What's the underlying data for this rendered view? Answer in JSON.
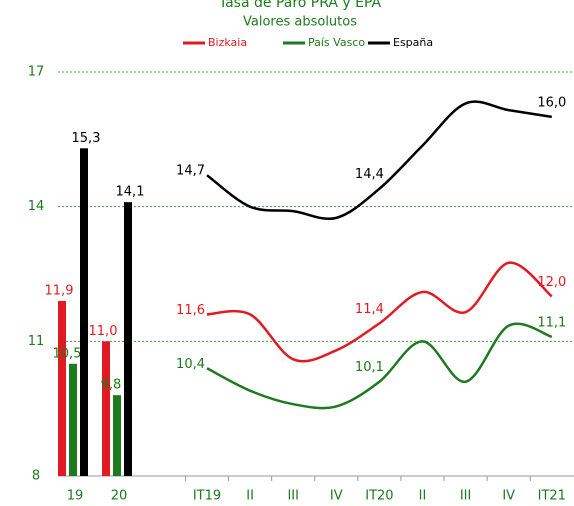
{
  "chart_data": [
    {
      "type": "bar",
      "title": "Tasa de Paro PRA y EPA",
      "subtitle": "Valores absolutos",
      "categories": [
        "19",
        "20"
      ],
      "series": [
        {
          "name": "Bizkaia",
          "color": "#e11b22",
          "values": [
            11.9,
            11.0
          ],
          "value_labels": [
            "11,9",
            "11,0"
          ]
        },
        {
          "name": "País Vasco",
          "color": "#1e7a1e",
          "values": [
            10.5,
            9.8
          ],
          "value_labels": [
            "10,5",
            "9,8"
          ]
        },
        {
          "name": "España",
          "color": "#000000",
          "values": [
            15.3,
            14.1
          ],
          "value_labels": [
            "15,3",
            "14,1"
          ]
        }
      ],
      "ylim": [
        8,
        17
      ],
      "yticks": [
        8,
        11,
        14,
        17
      ],
      "grid": true
    },
    {
      "type": "line",
      "categories": [
        "IT19",
        "II",
        "III",
        "IV",
        "IT20",
        "II",
        "III",
        "IV",
        "IT21"
      ],
      "series": [
        {
          "name": "Bizkaia",
          "color": "#e11b22",
          "values": [
            11.6,
            11.6,
            10.6,
            10.8,
            11.4,
            12.1,
            11.65,
            12.75,
            12.0
          ],
          "value_labels": [
            "11,6",
            null,
            null,
            null,
            "11,4",
            null,
            null,
            null,
            "12,0"
          ]
        },
        {
          "name": "País Vasco",
          "color": "#1e7a1e",
          "values": [
            10.4,
            9.9,
            9.6,
            9.55,
            10.1,
            11.0,
            10.1,
            11.35,
            11.1
          ],
          "value_labels": [
            "10,4",
            null,
            null,
            null,
            "10,1",
            null,
            null,
            null,
            "11,1"
          ]
        },
        {
          "name": "España",
          "color": "#000000",
          "values": [
            14.7,
            14.0,
            13.9,
            13.75,
            14.4,
            15.36,
            16.3,
            16.15,
            16.0
          ],
          "value_labels": [
            "14,7",
            null,
            null,
            null,
            "14,4",
            null,
            null,
            null,
            "16,0"
          ]
        }
      ],
      "ylim": [
        8,
        17
      ]
    }
  ]
}
